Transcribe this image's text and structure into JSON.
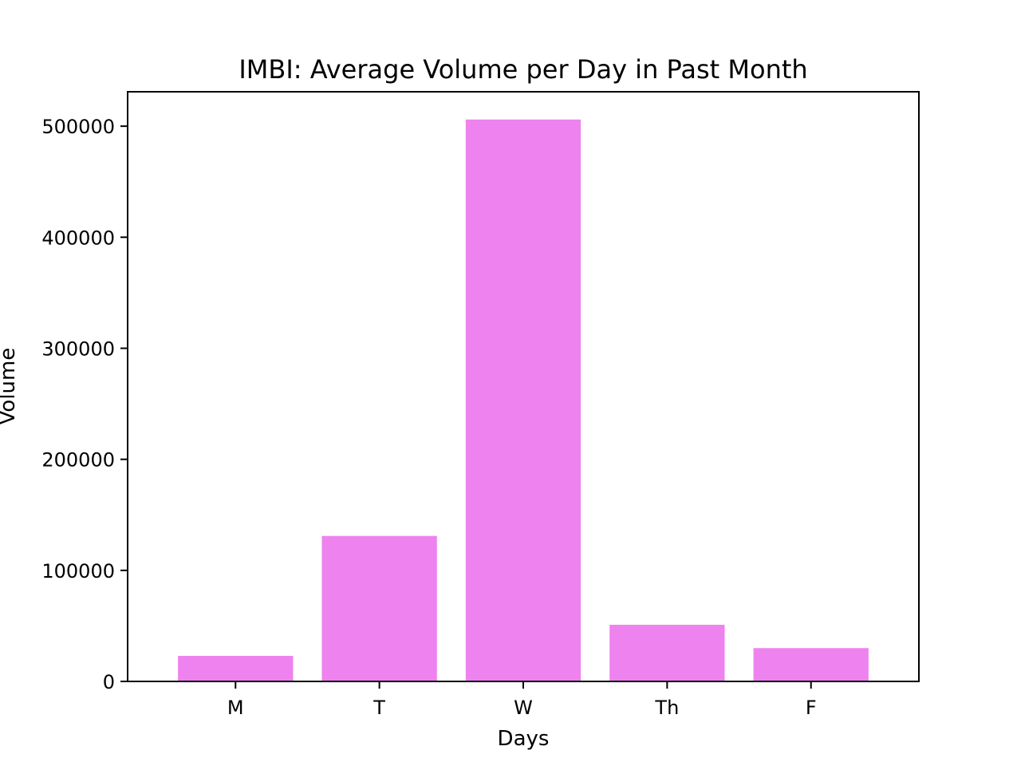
{
  "chart_data": {
    "type": "bar",
    "title": "IMBI: Average Volume per Day in Past Month",
    "xlabel": "Days",
    "ylabel": "Volume",
    "categories": [
      "M",
      "T",
      "W",
      "Th",
      "F"
    ],
    "values": [
      23000,
      131000,
      506000,
      51000,
      30000
    ],
    "ylim": [
      0,
      531000
    ],
    "yticks": [
      0,
      100000,
      200000,
      300000,
      400000,
      500000
    ],
    "ytick_labels": [
      "0",
      "100000",
      "200000",
      "300000",
      "400000",
      "500000"
    ],
    "bar_color": "#ee82ee",
    "grid": false,
    "legend": "none"
  }
}
